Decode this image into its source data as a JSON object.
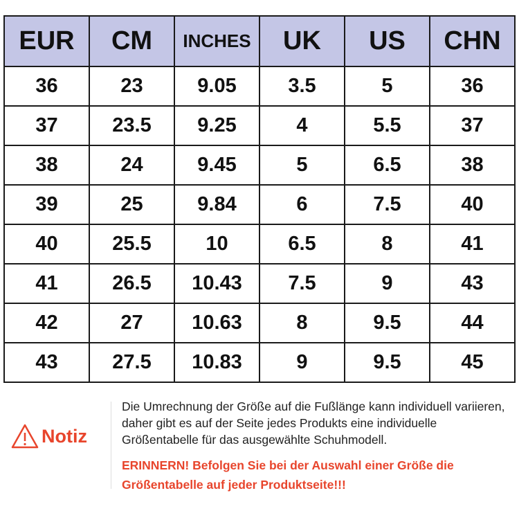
{
  "table": {
    "headers": [
      "EUR",
      "CM",
      "INCHES",
      "UK",
      "US",
      "CHN"
    ],
    "rows": [
      [
        "36",
        "23",
        "9.05",
        "3.5",
        "5",
        "36"
      ],
      [
        "37",
        "23.5",
        "9.25",
        "4",
        "5.5",
        "37"
      ],
      [
        "38",
        "24",
        "9.45",
        "5",
        "6.5",
        "38"
      ],
      [
        "39",
        "25",
        "9.84",
        "6",
        "7.5",
        "40"
      ],
      [
        "40",
        "25.5",
        "10",
        "6.5",
        "8",
        "41"
      ],
      [
        "41",
        "26.5",
        "10.43",
        "7.5",
        "9",
        "43"
      ],
      [
        "42",
        "27",
        "10.63",
        "8",
        "9.5",
        "44"
      ],
      [
        "43",
        "27.5",
        "10.83",
        "9",
        "9.5",
        "45"
      ]
    ],
    "header_color": "#c4c6e6"
  },
  "note": {
    "icon": "warning-triangle-icon",
    "label": "Notiz",
    "text": "Die Umrechnung der Größe auf die Fußlänge kann individuell variieren, daher gibt es auf der Seite jedes Produkts eine individuelle Größentabelle für das ausgewählte Schuhmodell.",
    "reminder": "ERINNERN! Befolgen Sie bei der Auswahl einer Größe die Größentabelle auf jeder Produktseite!!!",
    "accent_color": "#e8452c"
  }
}
